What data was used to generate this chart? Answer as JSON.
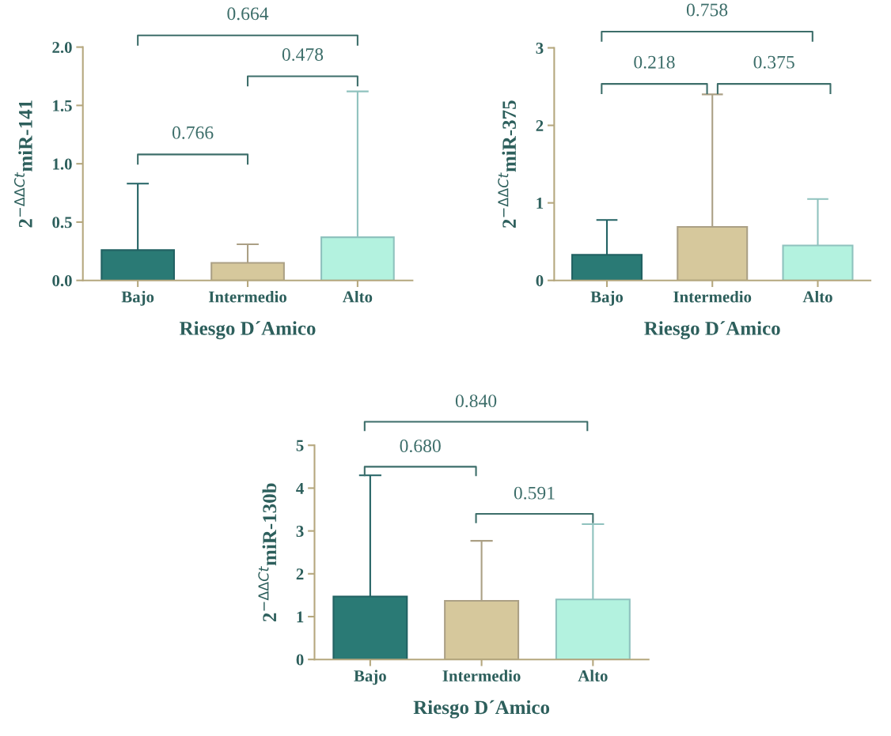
{
  "chart_data": [
    {
      "type": "bar",
      "categories": [
        "Bajo",
        "Intermedio",
        "Alto"
      ],
      "values": [
        0.26,
        0.15,
        0.37
      ],
      "errors": [
        [
          0.26,
          0.83
        ],
        [
          0.15,
          0.31
        ],
        [
          0.37,
          1.62
        ]
      ],
      "colors": [
        "#2a7a75",
        "#d6c89c",
        "#b3f2df"
      ],
      "xlabel": "Riesgo D´Amico",
      "ylabel": "2$^{−ΔΔCt}$miR-141",
      "ylim": [
        0,
        2
      ],
      "yticks": [
        {
          "value": 0,
          "label": "0.0"
        },
        {
          "value": 0.5,
          "label": "0.5"
        },
        {
          "value": 1,
          "label": "1.0"
        },
        {
          "value": 1.5,
          "label": "1.5"
        },
        {
          "value": 2,
          "label": "2.0"
        }
      ],
      "annotations": [
        "0.664",
        "0.478",
        "0.766"
      ],
      "grid": false,
      "legend": false
    },
    {
      "type": "bar",
      "categories": [
        "Bajo",
        "Intermedio",
        "Alto"
      ],
      "values": [
        0.33,
        0.69,
        0.45
      ],
      "errors": [
        [
          0.33,
          0.78
        ],
        [
          0.69,
          2.4
        ],
        [
          0.45,
          1.05
        ]
      ],
      "colors": [
        "#2a7a75",
        "#d6c89c",
        "#b3f2df"
      ],
      "xlabel": "Riesgo D´Amico",
      "ylabel": "2$^{−ΔΔCt}$miR-375",
      "ylim": [
        0,
        3
      ],
      "yticks": [
        0,
        1,
        2,
        3
      ],
      "annotations": [
        "0.758",
        "0.218",
        "0.375"
      ],
      "grid": false,
      "legend": false
    },
    {
      "type": "bar",
      "categories": [
        "Bajo",
        "Intermedio",
        "Alto"
      ],
      "values": [
        1.47,
        1.37,
        1.4
      ],
      "errors": [
        [
          1.47,
          4.3
        ],
        [
          1.37,
          2.77
        ],
        [
          1.4,
          3.16
        ]
      ],
      "colors": [
        "#2a7a75",
        "#d6c89c",
        "#b3f2df"
      ],
      "xlabel": "Riesgo D´Amico",
      "ylabel": "2$^{−ΔΔCt}$miR-130b",
      "ylim": [
        0,
        5
      ],
      "yticks": [
        0,
        1,
        2,
        3,
        4,
        5
      ],
      "annotations": [
        "0.840",
        "0.680",
        "0.591"
      ],
      "grid": false,
      "legend": false
    }
  ]
}
